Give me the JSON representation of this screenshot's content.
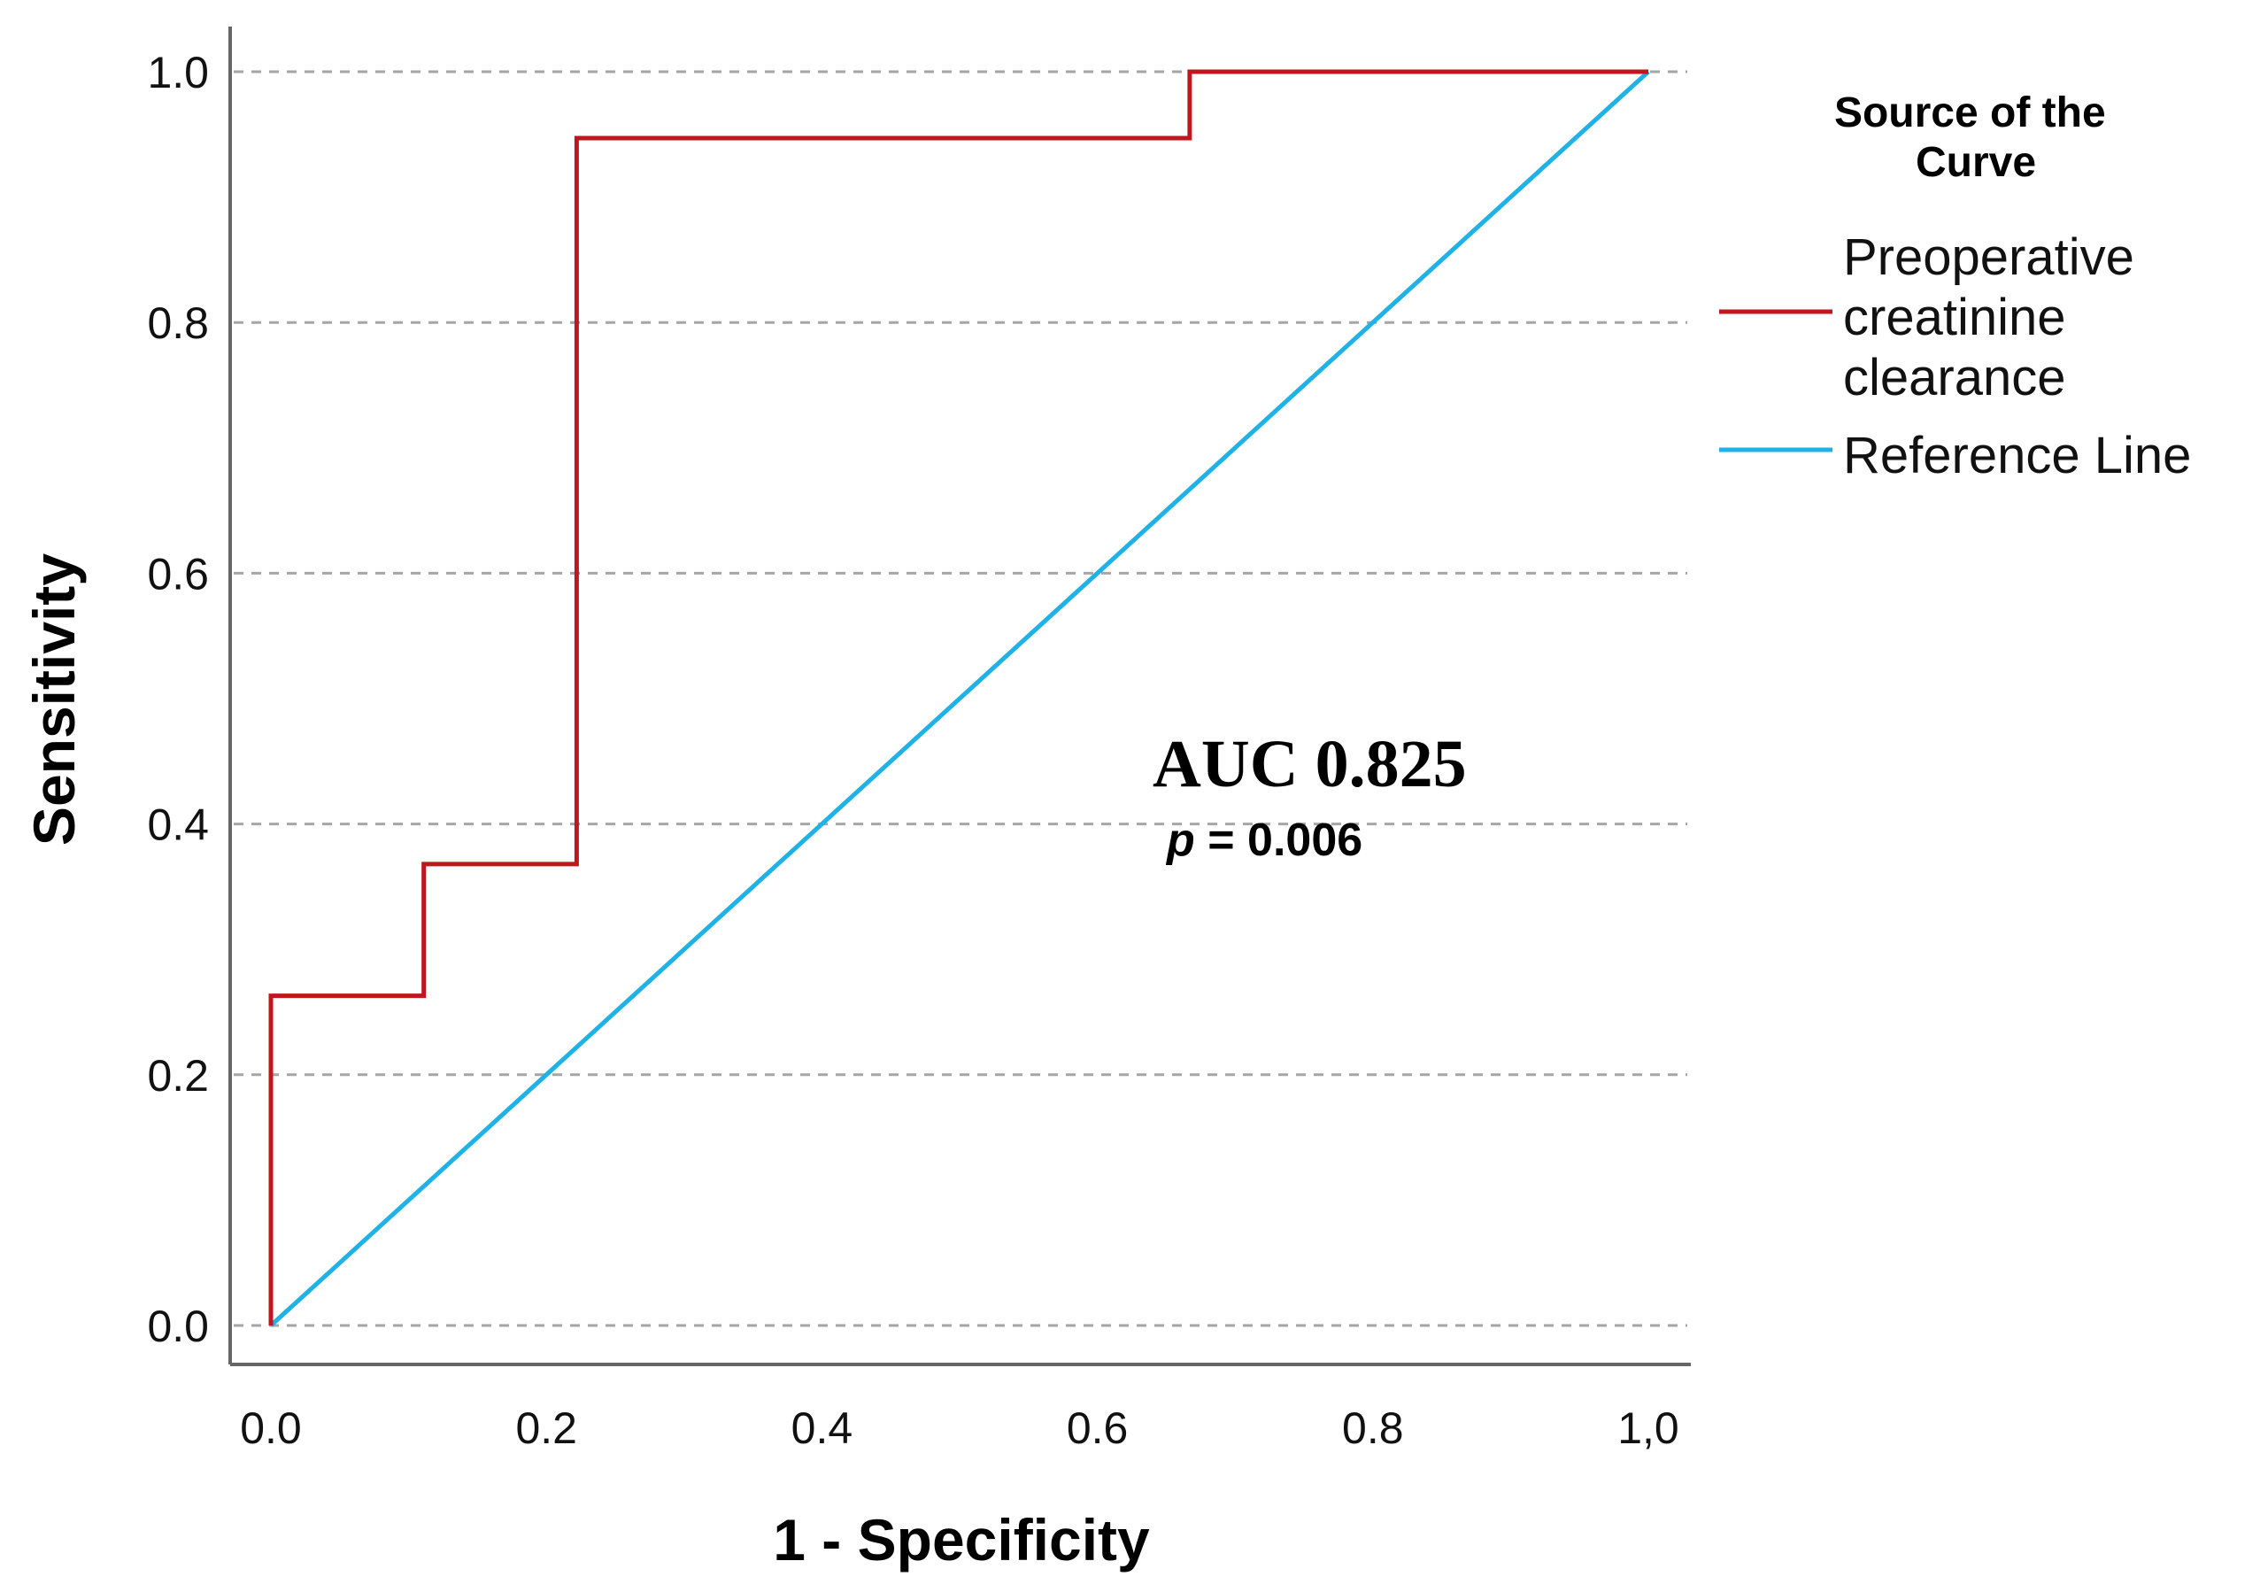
{
  "chart_data": {
    "type": "line",
    "title": "",
    "xlabel": "1 - Specificity",
    "ylabel": "Sensitivity",
    "xlim": [
      0,
      1
    ],
    "ylim": [
      0,
      1
    ],
    "x_ticks": [
      0,
      0.2,
      0.4,
      0.6,
      0.8,
      1.0
    ],
    "x_tick_labels": [
      "0.0",
      "0.2",
      "0.4",
      "0.6",
      "0.8",
      "1,0"
    ],
    "y_ticks": [
      0,
      0.2,
      0.4,
      0.6,
      0.8,
      1.0
    ],
    "y_tick_labels": [
      "0.0",
      "0.2",
      "0.4",
      "0.6",
      "0.8",
      "1.0"
    ],
    "grid": "horizontal dashed",
    "legend": {
      "title": "Source of the Curve",
      "placement": "right",
      "entries": [
        {
          "label": "Preoperative creatinine clearance",
          "lines": [
            "Preoperative",
            "creatinine",
            "clearance"
          ]
        },
        {
          "label": "Reference Line",
          "lines": [
            "Reference Line"
          ]
        }
      ]
    },
    "series": [
      {
        "name": "Preoperative creatinine clearance",
        "color": "#c0161d",
        "step": true,
        "points": [
          [
            0.0,
            0.0
          ],
          [
            0.0,
            0.263
          ],
          [
            0.111,
            0.263
          ],
          [
            0.111,
            0.368
          ],
          [
            0.222,
            0.368
          ],
          [
            0.222,
            0.947
          ],
          [
            0.667,
            0.947
          ],
          [
            0.667,
            1.0
          ],
          [
            1.0,
            1.0
          ]
        ]
      },
      {
        "name": "Reference Line",
        "color": "#1fb2e6",
        "step": false,
        "points": [
          [
            0.0,
            0.0
          ],
          [
            1.0,
            1.0
          ]
        ]
      }
    ],
    "annotations": {
      "auc": "AUC 0.825",
      "p_symbol": "p",
      "p_rest": " = 0.006"
    }
  },
  "colors": {
    "grid": "#a6a6a6",
    "axis": "#666666",
    "text": "#111111"
  }
}
